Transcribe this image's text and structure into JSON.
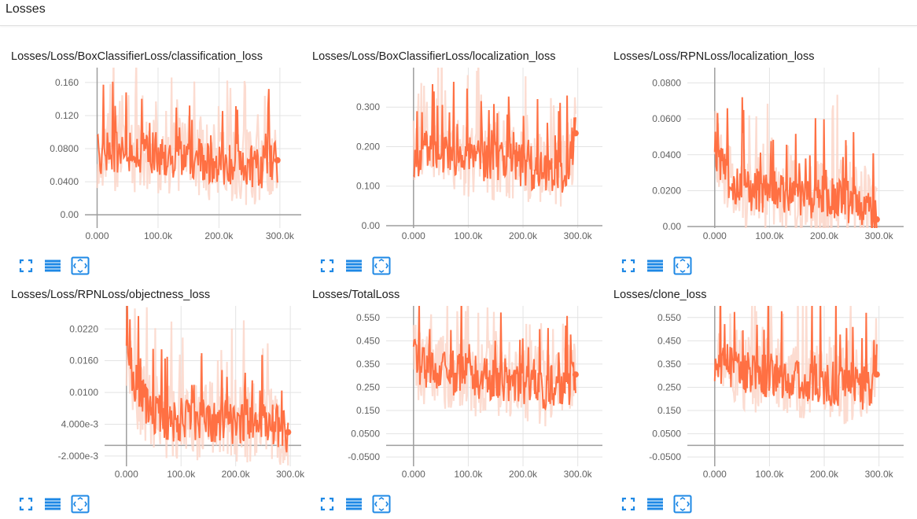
{
  "header": {
    "title": "Losses"
  },
  "colors": {
    "line": "#ff7043",
    "band": "#fbd3c5",
    "grid": "#e3e3e3",
    "axis": "#9e9e9e",
    "icon": "#1e88e5"
  },
  "icons": {
    "expand": "fullscreen-icon",
    "lines": "data-series-icon",
    "fit": "fit-domain-icon"
  },
  "charts": [
    {
      "title": "Losses/Loss/BoxClassifierLoss/classification_loss"
    },
    {
      "title": "Losses/Loss/BoxClassifierLoss/localization_loss"
    },
    {
      "title": "Losses/Loss/RPNLoss/localization_loss"
    },
    {
      "title": "Losses/Loss/RPNLoss/objectness_loss"
    },
    {
      "title": "Losses/TotalLoss"
    },
    {
      "title": "Losses/clone_loss"
    }
  ],
  "chart_data": [
    {
      "type": "line",
      "title": "Losses/Loss/BoxClassifierLoss/classification_loss",
      "xlim": [
        -20000,
        335000
      ],
      "ylim": [
        -0.016,
        0.178
      ],
      "xticks": [
        0,
        100000,
        200000,
        300000
      ],
      "xtick_labels": [
        "0.000",
        "100.0k",
        "200.0k",
        "300.0k"
      ],
      "yticks": [
        0,
        0.04,
        0.08,
        0.12,
        0.16
      ],
      "ytick_labels": [
        "0.00",
        "0.0400",
        "0.0800",
        "0.120",
        "0.160"
      ],
      "series": [
        {
          "x": [
            0,
            25000,
            50000,
            75000,
            100000,
            125000,
            150000,
            175000,
            200000,
            225000,
            250000,
            275000,
            296000
          ],
          "y": [
            0.074,
            0.078,
            0.073,
            0.077,
            0.074,
            0.07,
            0.072,
            0.066,
            0.062,
            0.06,
            0.058,
            0.056,
            0.066
          ]
        }
      ]
    },
    {
      "type": "line",
      "title": "Losses/Loss/BoxClassifierLoss/localization_loss",
      "xlim": [
        -50000,
        345000
      ],
      "ylim": [
        -0.006,
        0.4
      ],
      "xticks": [
        0,
        100000,
        200000,
        300000
      ],
      "xtick_labels": [
        "0.000",
        "100.0k",
        "200.0k",
        "300.0k"
      ],
      "yticks": [
        0,
        0.1,
        0.2,
        0.3
      ],
      "ytick_labels": [
        "0.00",
        "0.100",
        "0.200",
        "0.300"
      ],
      "series": [
        {
          "x": [
            0,
            25000,
            50000,
            75000,
            100000,
            125000,
            150000,
            175000,
            200000,
            225000,
            250000,
            275000,
            296000
          ],
          "y": [
            0.17,
            0.19,
            0.185,
            0.18,
            0.175,
            0.17,
            0.165,
            0.16,
            0.15,
            0.145,
            0.14,
            0.13,
            0.234
          ]
        }
      ]
    },
    {
      "type": "line",
      "title": "Losses/Loss/RPNLoss/localization_loss",
      "xlim": [
        -50000,
        345000
      ],
      "ylim": [
        -0.0008,
        0.0885
      ],
      "xticks": [
        0,
        100000,
        200000,
        300000
      ],
      "xtick_labels": [
        "0.000",
        "100.0k",
        "200.0k",
        "300.0k"
      ],
      "yticks": [
        0,
        0.02,
        0.04,
        0.06,
        0.08
      ],
      "ytick_labels": [
        "0.00",
        "0.0200",
        "0.0400",
        "0.0600",
        "0.0800"
      ],
      "series": [
        {
          "x": [
            0,
            25000,
            50000,
            75000,
            100000,
            125000,
            150000,
            175000,
            200000,
            225000,
            250000,
            275000,
            296000
          ],
          "y": [
            0.045,
            0.028,
            0.022,
            0.02,
            0.019,
            0.018,
            0.017,
            0.016,
            0.016,
            0.015,
            0.014,
            0.012,
            0.004
          ]
        }
      ]
    },
    {
      "type": "line",
      "title": "Losses/Loss/RPNLoss/objectness_loss",
      "xlim": [
        -40000,
        320000
      ],
      "ylim": [
        -0.00395,
        0.02635
      ],
      "xticks": [
        0,
        100000,
        200000,
        300000
      ],
      "xtick_labels": [
        "0.000",
        "100.0k",
        "200.0k",
        "300.0k"
      ],
      "yticks": [
        -0.002,
        0.004,
        0.01,
        0.016,
        0.022
      ],
      "ytick_labels": [
        "-2.000e-3",
        "4.000e-3",
        "0.0100",
        "0.0160",
        "0.0220"
      ],
      "series": [
        {
          "x": [
            0,
            25000,
            50000,
            75000,
            100000,
            125000,
            150000,
            175000,
            200000,
            225000,
            250000,
            275000,
            296000
          ],
          "y": [
            0.018,
            0.009,
            0.006,
            0.005,
            0.0048,
            0.0046,
            0.0045,
            0.0044,
            0.0043,
            0.0042,
            0.0041,
            0.004,
            0.0025
          ]
        }
      ]
    },
    {
      "type": "line",
      "title": "Losses/TotalLoss",
      "xlim": [
        -50000,
        345000
      ],
      "ylim": [
        -0.09,
        0.6
      ],
      "xticks": [
        0,
        100000,
        200000,
        300000
      ],
      "xtick_labels": [
        "0.000",
        "100.0k",
        "200.0k",
        "300.0k"
      ],
      "yticks": [
        -0.05,
        0.05,
        0.15,
        0.25,
        0.35,
        0.45,
        0.55
      ],
      "ytick_labels": [
        "-0.0500",
        "0.0500",
        "0.150",
        "0.250",
        "0.350",
        "0.450",
        "0.550"
      ],
      "series": [
        {
          "x": [
            0,
            25000,
            50000,
            75000,
            100000,
            125000,
            150000,
            175000,
            200000,
            225000,
            250000,
            275000,
            296000
          ],
          "y": [
            0.36,
            0.34,
            0.32,
            0.31,
            0.3,
            0.295,
            0.29,
            0.28,
            0.27,
            0.26,
            0.25,
            0.24,
            0.305
          ]
        }
      ]
    },
    {
      "type": "line",
      "title": "Losses/clone_loss",
      "xlim": [
        -50000,
        345000
      ],
      "ylim": [
        -0.09,
        0.6
      ],
      "xticks": [
        0,
        100000,
        200000,
        300000
      ],
      "xtick_labels": [
        "0.000",
        "100.0k",
        "200.0k",
        "300.0k"
      ],
      "yticks": [
        -0.05,
        0.05,
        0.15,
        0.25,
        0.35,
        0.45,
        0.55
      ],
      "ytick_labels": [
        "-0.0500",
        "0.0500",
        "0.150",
        "0.250",
        "0.350",
        "0.450",
        "0.550"
      ],
      "series": [
        {
          "x": [
            0,
            25000,
            50000,
            75000,
            100000,
            125000,
            150000,
            175000,
            200000,
            225000,
            250000,
            275000,
            296000
          ],
          "y": [
            0.36,
            0.34,
            0.32,
            0.31,
            0.3,
            0.295,
            0.29,
            0.28,
            0.27,
            0.26,
            0.25,
            0.24,
            0.305
          ]
        }
      ]
    }
  ]
}
